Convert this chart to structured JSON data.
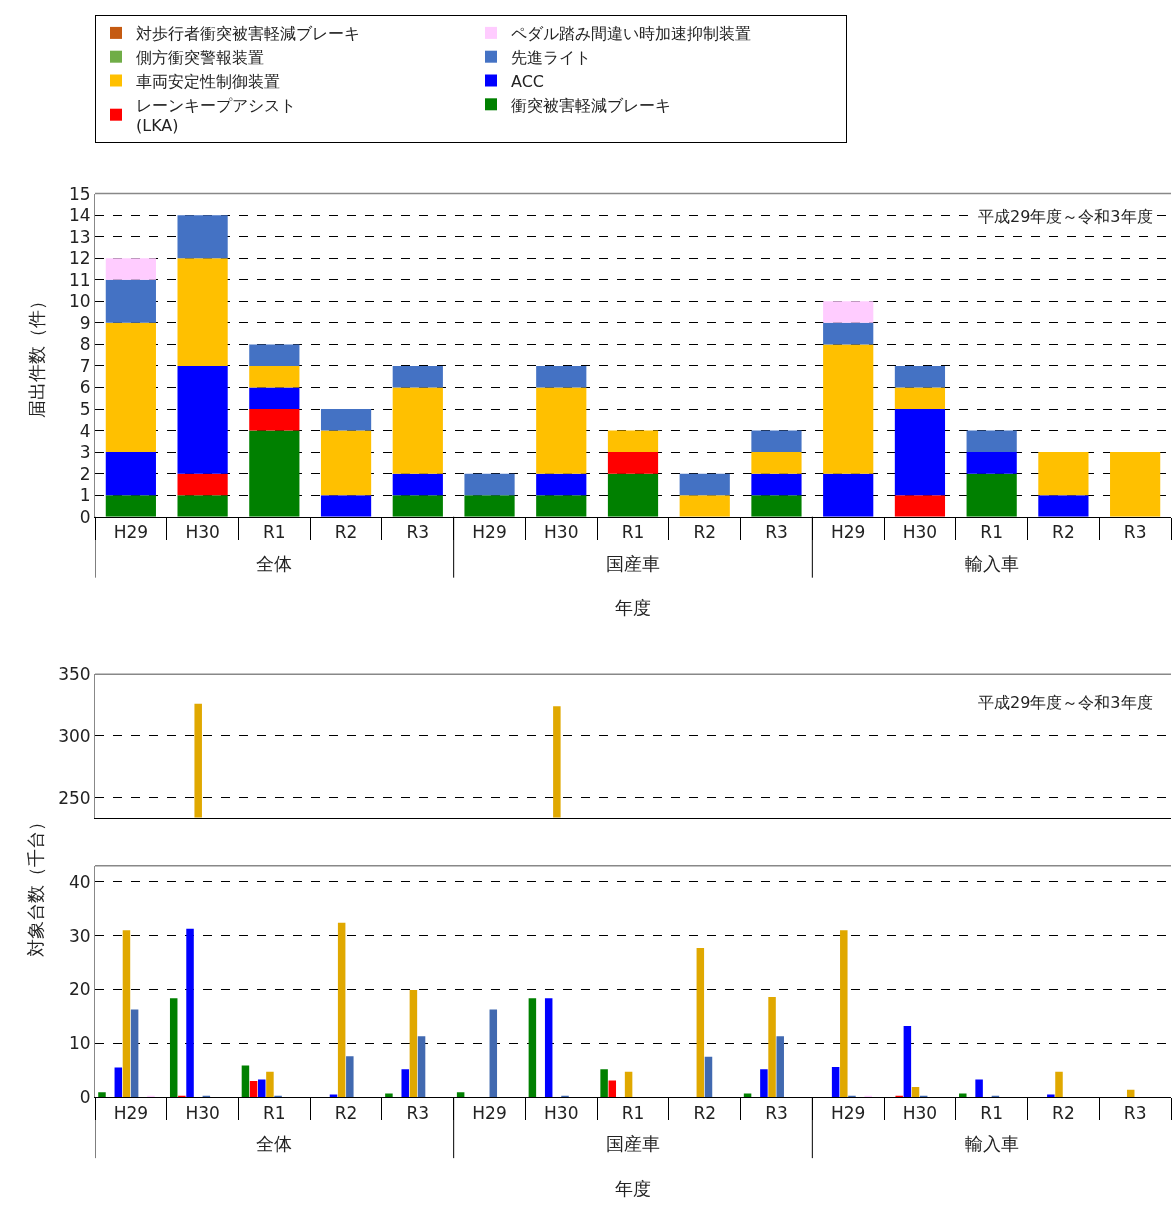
{
  "chart_data": [
    {
      "type": "bar",
      "stacked": true,
      "ylabel": "届出件数（件）",
      "xlabel": "年度",
      "categories": [
        "H29",
        "H30",
        "R1",
        "R2",
        "R3",
        "H29",
        "H30",
        "R1",
        "R2",
        "R3",
        "H29",
        "H30",
        "R1",
        "R2",
        "R3"
      ],
      "annotations": [
        "平成29年度～令和3年度",
        "全体",
        "国産車",
        "輸入車"
      ],
      "ylim": [
        0,
        15
      ],
      "yticks": [
        0,
        1,
        2,
        3,
        4,
        5,
        6,
        7,
        8,
        9,
        10,
        11,
        12,
        13,
        14,
        15
      ],
      "grid": "y",
      "legend": "top",
      "series": [
        {
          "name": "衝突被害軽減ブレーキ",
          "color": "#008000",
          "values": [
            1,
            1,
            4,
            0,
            1,
            1,
            1,
            2,
            0,
            1,
            0,
            0,
            2,
            0,
            0
          ]
        },
        {
          "name": "レーンキープアシスト\n(LKA)",
          "color": "#ff0000",
          "values": [
            0,
            1,
            1,
            0,
            0,
            0,
            0,
            1,
            0,
            0,
            0,
            1,
            0,
            0,
            0
          ]
        },
        {
          "name": "ACC",
          "color": "#0000ff",
          "values": [
            2,
            5,
            1,
            1,
            1,
            0,
            1,
            0,
            0,
            1,
            2,
            4,
            1,
            1,
            0
          ]
        },
        {
          "name": "車両安定性制御装置",
          "color": "#ffc000",
          "values": [
            6,
            5,
            1,
            3,
            4,
            0,
            4,
            1,
            1,
            1,
            6,
            1,
            0,
            2,
            3
          ]
        },
        {
          "name": "先進ライト",
          "color": "#4472c4",
          "values": [
            2,
            2,
            1,
            1,
            1,
            1,
            1,
            0,
            1,
            1,
            1,
            1,
            1,
            0,
            0
          ]
        },
        {
          "name": "側方衝突警報装置",
          "color": "#70ad47",
          "values": [
            0,
            0,
            0,
            0,
            0,
            0,
            0,
            0,
            0,
            0,
            0,
            0,
            0,
            0,
            0
          ]
        },
        {
          "name": "ペダル踏み間違い時加速抑制装置",
          "color": "#ffccff",
          "values": [
            1,
            0,
            0,
            0,
            0,
            0,
            0,
            0,
            0,
            0,
            1,
            0,
            0,
            0,
            0
          ]
        },
        {
          "name": "対歩行者衝突被害軽減ブレーキ",
          "color": "#c55a11",
          "values": [
            0,
            0,
            0,
            0,
            0,
            0,
            0,
            0,
            0,
            0,
            0,
            0,
            0,
            0,
            0
          ]
        }
      ]
    },
    {
      "type": "bar",
      "tick_labels": "y",
      "legend": false,
      "grid": "y",
      "categories": [
        null,
        null,
        null,
        null,
        null,
        null,
        null,
        null,
        null,
        null,
        null,
        null,
        null,
        null,
        null
      ],
      "annotations": [
        "平成29年度～令和3年度"
      ],
      "ylim": [
        234,
        350
      ],
      "yticks": [
        250,
        300,
        350
      ],
      "series": [
        {
          "color": "#e0a800",
          "values": [
            null,
            326,
            null,
            null,
            null,
            null,
            324,
            null,
            null,
            null,
            null,
            null,
            null,
            null,
            null
          ]
        }
      ]
    },
    {
      "type": "bar",
      "ylabel": "対象台数（千台）",
      "xlabel": "年度",
      "legend": false,
      "grid": "y",
      "categories": [
        "H29",
        "H30",
        "R1",
        "R2",
        "R3",
        "H29",
        "H30",
        "R1",
        "R2",
        "R3",
        "H29",
        "H30",
        "R1",
        "R2",
        "R3"
      ],
      "annotations": [
        "全体",
        "国産車",
        "輸入車"
      ],
      "ylim": [
        0,
        43
      ],
      "yticks": [
        0,
        10,
        20,
        30,
        40
      ],
      "series": [
        {
          "color": "#008000",
          "values": [
            0.9,
            18.4,
            5.9,
            0,
            0.7,
            0.9,
            18.4,
            5.2,
            0,
            0.7,
            0,
            0,
            0.7,
            0,
            0
          ]
        },
        {
          "color": "#ff0000",
          "values": [
            0,
            0.2,
            3.0,
            0,
            0,
            0,
            0,
            3.1,
            0,
            0,
            0,
            0.2,
            0,
            0,
            0
          ]
        },
        {
          "color": "#0000ff",
          "values": [
            5.5,
            31.3,
            3.3,
            0.5,
            5.2,
            0,
            18.4,
            0,
            0,
            5.2,
            5.6,
            13.2,
            3.3,
            0.5,
            0
          ]
        },
        {
          "color": "#e0a800",
          "values": [
            31,
            null,
            4.7,
            32.4,
            19.9,
            0,
            null,
            4.7,
            27.7,
            18.6,
            31,
            1.9,
            0,
            4.7,
            1.4
          ]
        },
        {
          "color": "#4169b0",
          "values": [
            16.3,
            0.2,
            0.2,
            7.6,
            11.3,
            16.3,
            0.2,
            0,
            7.5,
            11.3,
            0.2,
            0.2,
            0.2,
            0,
            0
          ]
        },
        {
          "color": "#70ad47",
          "values": [
            0,
            0,
            0,
            0,
            0,
            0,
            0,
            0,
            0,
            0,
            0,
            0,
            0,
            0,
            0
          ]
        },
        {
          "color": "#ffccff",
          "values": [
            0.1,
            0,
            0,
            0,
            0,
            0,
            0,
            0,
            0,
            0,
            0.1,
            0,
            0,
            0,
            0
          ]
        },
        {
          "color": "#c55a11",
          "values": [
            0,
            0,
            0,
            0,
            0,
            0,
            0,
            0,
            0,
            0,
            0,
            0,
            0,
            0,
            0
          ]
        }
      ]
    }
  ]
}
